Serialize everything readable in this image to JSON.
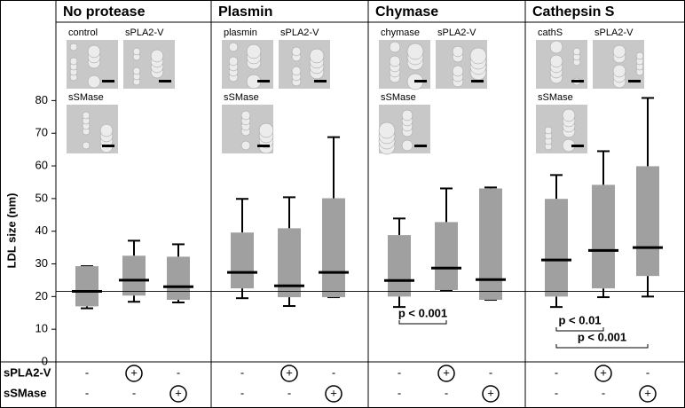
{
  "chart_data": {
    "type": "box",
    "ylabel": "LDL size (nm)",
    "ylim": [
      0,
      104
    ],
    "yticks": [
      0,
      10,
      20,
      30,
      40,
      50,
      60,
      70,
      80
    ],
    "reference_line": 21.6,
    "box_color": "#a0a0a0",
    "treatment_labels": [
      "sPLA2-V",
      "sSMase"
    ],
    "panels": [
      {
        "title": "No protease",
        "images": [
          "control",
          "sPLA2-V",
          "sSMase"
        ],
        "boxes": [
          {
            "whislo": 16.4,
            "q1": 17,
            "med": 21.6,
            "q3": 29.3,
            "whishi": 29.3
          },
          {
            "whislo": 18.4,
            "q1": 20.3,
            "med": 25,
            "q3": 32.5,
            "whishi": 37.1
          },
          {
            "whislo": 18.2,
            "q1": 19,
            "med": 23,
            "q3": 32.2,
            "whishi": 36
          }
        ],
        "treatments": [
          [
            "-",
            "+",
            "-"
          ],
          [
            "-",
            "-",
            "+"
          ]
        ],
        "annotations": []
      },
      {
        "title": "Plasmin",
        "images": [
          "plasmin",
          "sPLA2-V",
          "sSMase"
        ],
        "boxes": [
          {
            "whislo": 19.5,
            "q1": 22.5,
            "med": 27.4,
            "q3": 39.6,
            "whishi": 49.9
          },
          {
            "whislo": 17.1,
            "q1": 19.8,
            "med": 23.3,
            "q3": 40.9,
            "whishi": 50.4
          },
          {
            "whislo": 19.8,
            "q1": 19.8,
            "med": 27.4,
            "q3": 50.1,
            "whishi": 68.8
          }
        ],
        "treatments": [
          [
            "-",
            "+",
            "-"
          ],
          [
            "-",
            "-",
            "+"
          ]
        ],
        "annotations": []
      },
      {
        "title": "Chymase",
        "images": [
          "chymase",
          "sPLA2-V",
          "sSMase"
        ],
        "boxes": [
          {
            "whislo": 16.8,
            "q1": 20,
            "med": 24.9,
            "q3": 38.8,
            "whishi": 43.9
          },
          {
            "whislo": 22,
            "q1": 22,
            "med": 28.7,
            "q3": 42.8,
            "whishi": 53.1
          },
          {
            "whislo": 19,
            "q1": 19,
            "med": 25.2,
            "q3": 53.1,
            "whishi": 53.4
          }
        ],
        "treatments": [
          [
            "-",
            "+",
            "-"
          ],
          [
            "-",
            "-",
            "+"
          ]
        ],
        "annotations": [
          "p < 0.001"
        ]
      },
      {
        "title": "Cathepsin S",
        "images": [
          "cathS",
          "sPLA2-V",
          "sSMase"
        ],
        "boxes": [
          {
            "whislo": 16.8,
            "q1": 20,
            "med": 31.2,
            "q3": 49.9,
            "whishi": 57.2
          },
          {
            "whislo": 19.8,
            "q1": 22.5,
            "med": 34.1,
            "q3": 54.2,
            "whishi": 64.5
          },
          {
            "whislo": 20,
            "q1": 26.3,
            "med": 35,
            "q3": 59.9,
            "whishi": 80.8
          }
        ],
        "treatments": [
          [
            "-",
            "+",
            "-"
          ],
          [
            "-",
            "-",
            "+"
          ]
        ],
        "annotations": [
          "p < 0.01",
          "p < 0.001"
        ]
      }
    ]
  }
}
